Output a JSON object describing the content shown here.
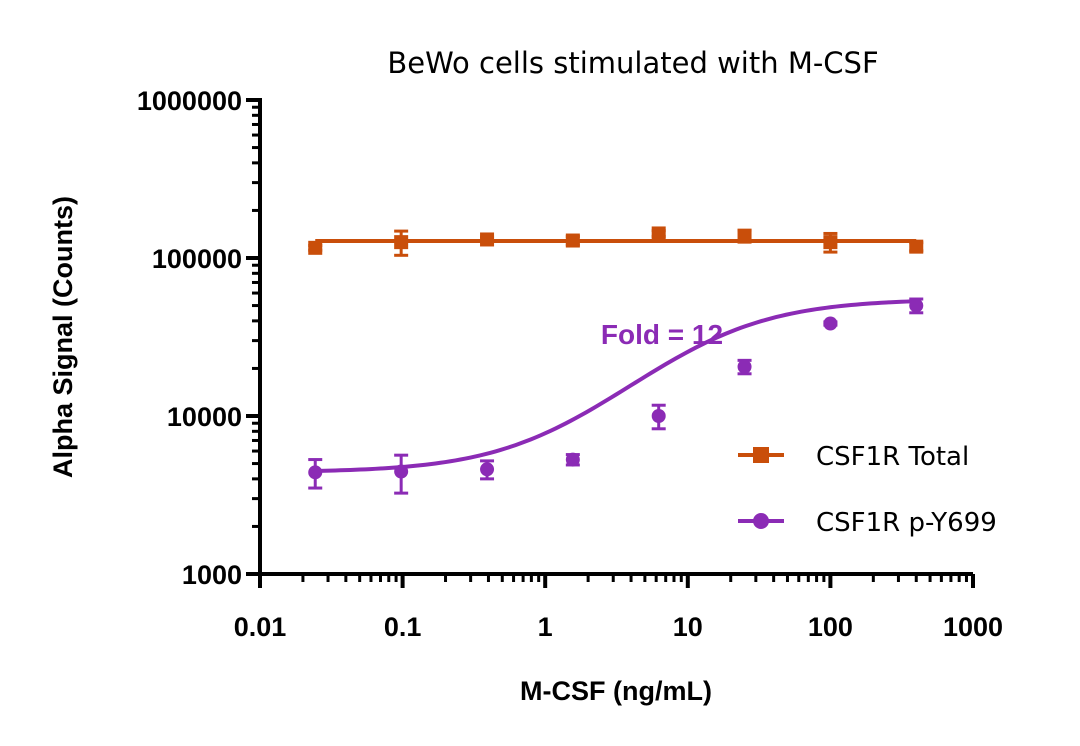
{
  "chart_data": {
    "type": "scatter",
    "title": "BeWo cells stimulated with M-CSF",
    "xlabel": "M-CSF (ng/mL)",
    "ylabel": "Alpha Signal (Counts)",
    "xscale": "log",
    "yscale": "log",
    "xlim": [
      0.01,
      1000
    ],
    "ylim": [
      1000,
      1000000
    ],
    "xticks": [
      0.01,
      0.1,
      1,
      10,
      100,
      1000
    ],
    "xtick_labels": [
      "0.01",
      "0.1",
      "1",
      "10",
      "100",
      "1000"
    ],
    "yticks": [
      1000,
      10000,
      100000,
      1000000
    ],
    "ytick_labels": [
      "1000",
      "10000",
      "100000",
      "1000000"
    ],
    "grid": false,
    "legend_position": "right-middle",
    "annotation": {
      "text": "Fold = 12",
      "color": "#8B2BB5",
      "x": 10,
      "y": 30000
    },
    "x": [
      0.0244,
      0.0977,
      0.391,
      1.5625,
      6.25,
      25,
      100,
      400
    ],
    "series": [
      {
        "name": "CSF1R Total",
        "color": "#C94E0A",
        "marker": "square",
        "fit": "flat",
        "values": [
          116000,
          126000,
          131000,
          129000,
          143000,
          138000,
          126000,
          118000
        ],
        "errors": [
          4000,
          22000,
          5000,
          8000,
          6000,
          12000,
          17000,
          7000
        ]
      },
      {
        "name": "CSF1R p-Y699",
        "color": "#8B2BB5",
        "marker": "circle",
        "fit": "sigmoidal",
        "fit_params": {
          "bottom": 4400,
          "top": 55000,
          "ec50": 14,
          "hill": 1.0
        },
        "values": [
          4400,
          4450,
          4600,
          5300,
          10000,
          20500,
          38500,
          50000
        ],
        "errors": [
          900,
          1200,
          600,
          400,
          1700,
          2000,
          900,
          5000
        ]
      }
    ]
  }
}
